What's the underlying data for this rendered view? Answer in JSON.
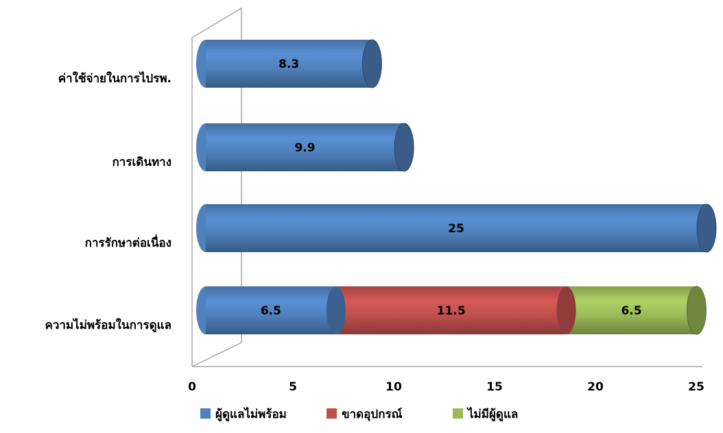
{
  "chart_data": {
    "type": "bar",
    "orientation": "horizontal",
    "stacked": true,
    "style": "3d-cylinder",
    "categories": [
      "ค่าใช้จ่ายในการไปรพ.",
      "การเดินทาง",
      "การรักษาต่อเนื่อง",
      "ความไม่พร้อมในการดูแล"
    ],
    "series": [
      {
        "name": "ผู้ดูแลไม่พร้อม",
        "color": "#4F81BD",
        "values": [
          8.3,
          9.9,
          25,
          6.5
        ]
      },
      {
        "name": "ขาดอุปกรณ์",
        "color": "#C0504D",
        "values": [
          0,
          0,
          0,
          11.5
        ]
      },
      {
        "name": "ไม่มีผู้ดูแล",
        "color": "#9BBB59",
        "values": [
          0,
          0,
          0,
          6.5
        ]
      }
    ],
    "data_labels": [
      [
        "8.3",
        "9.9",
        "25",
        "6.5"
      ],
      [
        "",
        "",
        "",
        "11.5"
      ],
      [
        "",
        "",
        "",
        "6.5"
      ]
    ],
    "x_ticks": [
      "0",
      "5",
      "10",
      "15",
      "20",
      "25"
    ],
    "xlim": [
      0,
      25
    ],
    "title": "",
    "xlabel": "",
    "ylabel": "",
    "grid": false,
    "legend_position": "bottom"
  }
}
